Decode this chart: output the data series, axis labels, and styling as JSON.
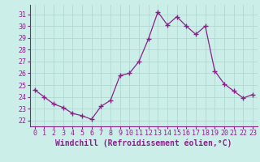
{
  "x": [
    0,
    1,
    2,
    3,
    4,
    5,
    6,
    7,
    8,
    9,
    10,
    11,
    12,
    13,
    14,
    15,
    16,
    17,
    18,
    19,
    20,
    21,
    22,
    23
  ],
  "y": [
    24.6,
    24.0,
    23.4,
    23.1,
    22.6,
    22.4,
    22.1,
    23.2,
    23.7,
    25.8,
    26.0,
    27.0,
    28.9,
    31.2,
    30.1,
    30.8,
    30.0,
    29.3,
    30.0,
    26.2,
    25.1,
    24.5,
    23.9,
    24.2
  ],
  "line_color": "#882288",
  "marker": "+",
  "markersize": 4,
  "linewidth": 0.9,
  "xlabel": "Windchill (Refroidissement éolien,°C)",
  "xlabel_fontsize": 7,
  "ylim": [
    21.5,
    31.8
  ],
  "xlim": [
    -0.5,
    23.5
  ],
  "yticks": [
    22,
    23,
    24,
    25,
    26,
    27,
    28,
    29,
    30,
    31
  ],
  "xticks": [
    0,
    1,
    2,
    3,
    4,
    5,
    6,
    7,
    8,
    9,
    10,
    11,
    12,
    13,
    14,
    15,
    16,
    17,
    18,
    19,
    20,
    21,
    22,
    23
  ],
  "xtick_labels": [
    "0",
    "1",
    "2",
    "3",
    "4",
    "5",
    "6",
    "7",
    "8",
    "9",
    "10",
    "11",
    "12",
    "13",
    "14",
    "15",
    "16",
    "17",
    "18",
    "19",
    "20",
    "21",
    "22",
    "23"
  ],
  "background_color": "#cceee8",
  "grid_color": "#aad4cc",
  "tick_fontsize": 6,
  "spine_color": "#882288",
  "title": ""
}
